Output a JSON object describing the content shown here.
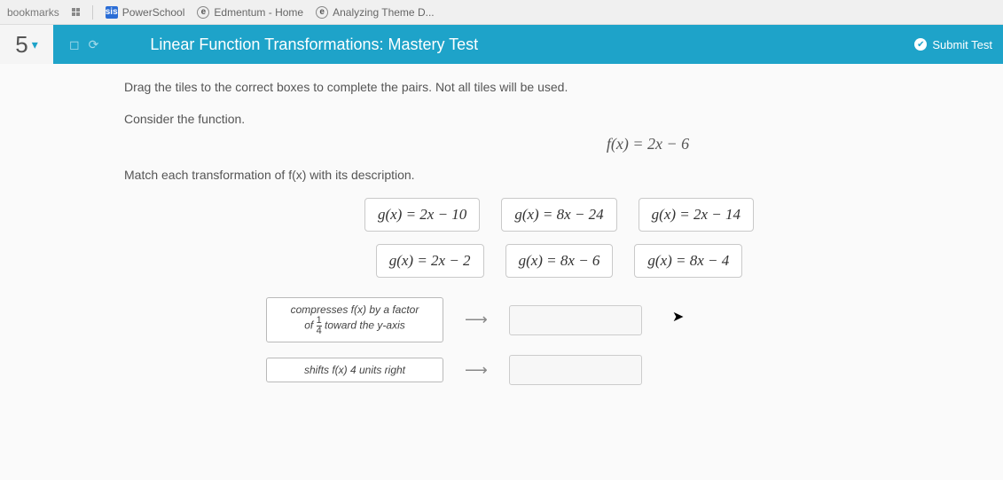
{
  "bookmarks": {
    "label": "bookmarks",
    "items": [
      {
        "name": "PowerSchool",
        "favicon": "ps"
      },
      {
        "name": "Edmentum - Home",
        "favicon": "ed"
      },
      {
        "name": "Analyzing Theme D...",
        "favicon": "ed"
      }
    ]
  },
  "header": {
    "question_number": "5",
    "title": "Linear Function Transformations: Mastery Test",
    "submit_label": "Submit Test"
  },
  "instructions": "Drag the tiles to the correct boxes to complete the pairs. Not all tiles will be used.",
  "consider_label": "Consider the function.",
  "base_formula": "f(x)  =  2x  −  6",
  "match_label": "Match each transformation of f(x) with its description.",
  "tiles": {
    "row1": [
      "g(x)  =  2x  −  10",
      "g(x)  =  8x  −  24",
      "g(x)  =  2x  −  14"
    ],
    "row2": [
      "g(x)  =  2x  −  2",
      "g(x)  =  8x  −  6",
      "g(x)  =  8x  −  4"
    ]
  },
  "targets": [
    {
      "desc_html": "compresses <span class='fx'>f(x)</span> by a factor<br>of <span class='frac'><span class='n'>1</span><span class='d'>4</span></span> toward the <span class='fx'>y</span>-axis"
    },
    {
      "desc_html": "shifts <span class='fx'>f(x)</span> 4 units right"
    }
  ],
  "colors": {
    "header_bg": "#1ea3c9",
    "page_bg": "#fafafa"
  }
}
